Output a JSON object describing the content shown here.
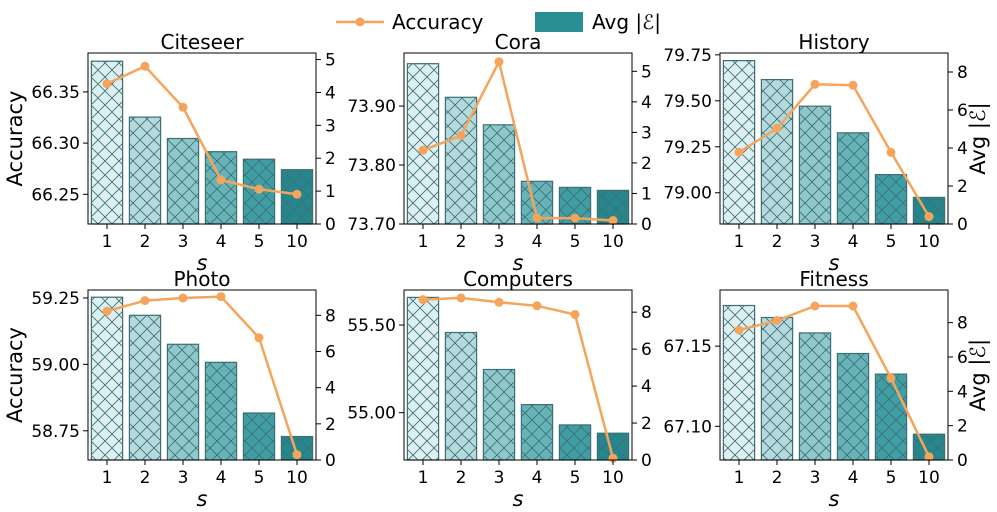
{
  "legend": {
    "accuracy_label": "Accuracy",
    "edges_label": "Avg |ℰ|",
    "line_color": "#f4a55b",
    "bar_color": "#2a8e94"
  },
  "chart_data": [
    {
      "type": "bar+line",
      "title": "Citeseer",
      "categories": [
        "1",
        "2",
        "3",
        "4",
        "5",
        "10"
      ],
      "xlabel": "s",
      "ylabel": "Accuracy",
      "ylabel_right": "",
      "accuracy": [
        66.358,
        66.375,
        66.335,
        66.264,
        66.255,
        66.25
      ],
      "ylim": [
        66.221,
        66.388
      ],
      "yticks": [
        66.25,
        66.3,
        66.35
      ],
      "ytick_labels": [
        "66.25",
        "66.30",
        "66.35"
      ],
      "avg_edges": [
        4.95,
        3.25,
        2.6,
        2.2,
        1.97,
        1.65
      ],
      "ylim_right": [
        0,
        5.2
      ],
      "yticks_right": [
        0,
        1,
        2,
        3,
        4,
        5
      ]
    },
    {
      "type": "bar+line",
      "title": "Cora",
      "categories": [
        "1",
        "2",
        "3",
        "4",
        "5",
        "10"
      ],
      "xlabel": "s",
      "ylabel": "",
      "ylabel_right": "",
      "accuracy": [
        73.825,
        73.85,
        73.975,
        73.71,
        73.71,
        73.706
      ],
      "ylim": [
        73.7,
        73.99
      ],
      "yticks": [
        73.7,
        73.8,
        73.9
      ],
      "ytick_labels": [
        "73.70",
        "73.80",
        "73.90"
      ],
      "avg_edges": [
        5.25,
        4.15,
        3.25,
        1.4,
        1.2,
        1.1
      ],
      "ylim_right": [
        0,
        5.6
      ],
      "yticks_right": [
        0,
        1,
        2,
        3,
        4,
        5
      ]
    },
    {
      "type": "bar+line",
      "title": "History",
      "categories": [
        "1",
        "2",
        "3",
        "4",
        "5",
        "10"
      ],
      "xlabel": "s",
      "ylabel": "",
      "ylabel_right": "Avg |ℰ|",
      "accuracy": [
        79.22,
        79.35,
        79.59,
        79.585,
        79.22,
        78.87
      ],
      "ylim": [
        78.83,
        79.76
      ],
      "yticks": [
        79.0,
        79.25,
        79.5,
        79.75
      ],
      "ytick_labels": [
        "79.00",
        "79.25",
        "79.50",
        "79.75"
      ],
      "avg_edges": [
        8.6,
        7.6,
        6.2,
        4.8,
        2.6,
        1.4
      ],
      "ylim_right": [
        0,
        9.0
      ],
      "yticks_right": [
        0,
        2,
        4,
        6,
        8
      ]
    },
    {
      "type": "bar+line",
      "title": "Photo",
      "categories": [
        "1",
        "2",
        "3",
        "4",
        "5",
        "10"
      ],
      "xlabel": "s",
      "ylabel": "Accuracy",
      "ylabel_right": "",
      "accuracy": [
        59.2,
        59.24,
        59.25,
        59.255,
        59.1,
        58.66
      ],
      "ylim": [
        58.64,
        59.28
      ],
      "yticks": [
        58.75,
        59.0,
        59.25
      ],
      "ytick_labels": [
        "58.75",
        "59.00",
        "59.25"
      ],
      "avg_edges": [
        9.0,
        8.0,
        6.4,
        5.4,
        2.6,
        1.3
      ],
      "ylim_right": [
        0,
        9.4
      ],
      "yticks_right": [
        0,
        2,
        4,
        6,
        8
      ]
    },
    {
      "type": "bar+line",
      "title": "Computers",
      "categories": [
        "1",
        "2",
        "3",
        "4",
        "5",
        "10"
      ],
      "xlabel": "s",
      "ylabel": "",
      "ylabel_right": "",
      "accuracy": [
        55.645,
        55.655,
        55.63,
        55.61,
        55.56,
        54.74
      ],
      "ylim": [
        54.73,
        55.7
      ],
      "yticks": [
        55.0,
        55.5
      ],
      "ytick_labels": [
        "55.00",
        "55.50"
      ],
      "avg_edges": [
        8.8,
        6.9,
        4.9,
        3.0,
        1.9,
        1.45
      ],
      "ylim_right": [
        0,
        9.2
      ],
      "yticks_right": [
        0,
        2,
        4,
        6,
        8
      ]
    },
    {
      "type": "bar+line",
      "title": "Fitness",
      "categories": [
        "1",
        "2",
        "3",
        "4",
        "5",
        "10"
      ],
      "xlabel": "s",
      "ylabel": "",
      "ylabel_right": "Avg |ℰ|",
      "accuracy": [
        67.16,
        67.166,
        67.175,
        67.175,
        67.13,
        67.081
      ],
      "ylim": [
        67.079,
        67.185
      ],
      "yticks": [
        67.1,
        67.15
      ],
      "ytick_labels": [
        "67.10",
        "67.15"
      ],
      "avg_edges": [
        9.0,
        8.3,
        7.4,
        6.2,
        5.0,
        1.5
      ],
      "ylim_right": [
        0,
        9.9
      ],
      "yticks_right": [
        0,
        2,
        4,
        6,
        8
      ]
    }
  ]
}
